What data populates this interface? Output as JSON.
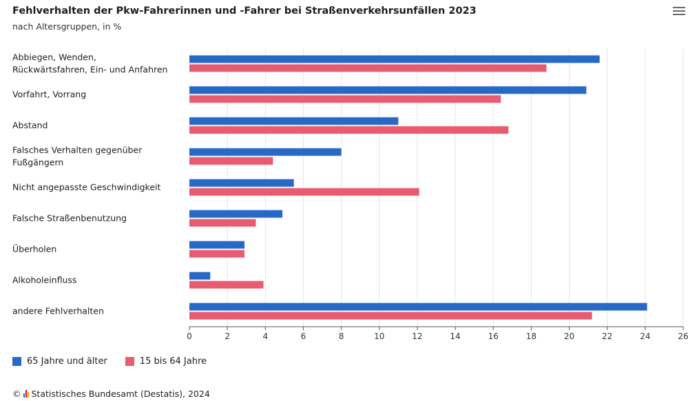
{
  "header": {
    "title": "Fehlverhalten der Pkw-Fahrerinnen und -Fahrer bei Straßenverkehrsunfällen 2023",
    "subtitle": "nach Altersgruppen, in %"
  },
  "menu": {
    "icon": "hamburger-menu-icon"
  },
  "footer": {
    "copyright_symbol": "©",
    "logo_icon": "destatis-logo-icon",
    "credit": "Statistisches Bundesamt (Destatis), 2024"
  },
  "colors": {
    "series_65plus": "#2769c6",
    "series_15_64": "#e85c72",
    "grid": "#e6e6e6",
    "axis": "#555555"
  },
  "chart_data": {
    "type": "bar",
    "orientation": "horizontal",
    "categories": [
      [
        "Abbiegen, Wenden,",
        "Rückwärtsfahren, Ein- und Anfahren"
      ],
      [
        "Vorfahrt, Vorrang"
      ],
      [
        "Abstand"
      ],
      [
        "Falsches Verhalten gegenüber",
        "Fußgängern"
      ],
      [
        "Nicht angepasste Geschwindigkeit"
      ],
      [
        "Falsche Straßenbenutzung"
      ],
      [
        "Überholen"
      ],
      [
        "Alkoholeinfluss"
      ],
      [
        "andere Fehlverhalten"
      ]
    ],
    "series": [
      {
        "name": "65 Jahre und älter",
        "color": "#2769c6",
        "values": [
          21.6,
          20.9,
          11.0,
          8.0,
          5.5,
          4.9,
          2.9,
          1.1,
          24.1
        ]
      },
      {
        "name": "15 bis 64 Jahre",
        "color": "#e85c72",
        "values": [
          18.8,
          16.4,
          16.8,
          4.4,
          12.1,
          3.5,
          2.9,
          3.9,
          21.2
        ]
      }
    ],
    "xticks": [
      0,
      2,
      4,
      6,
      8,
      10,
      12,
      14,
      16,
      18,
      20,
      22,
      24,
      26
    ],
    "xlim": [
      0,
      26
    ],
    "grid": true,
    "legend_position": "bottom-left"
  }
}
